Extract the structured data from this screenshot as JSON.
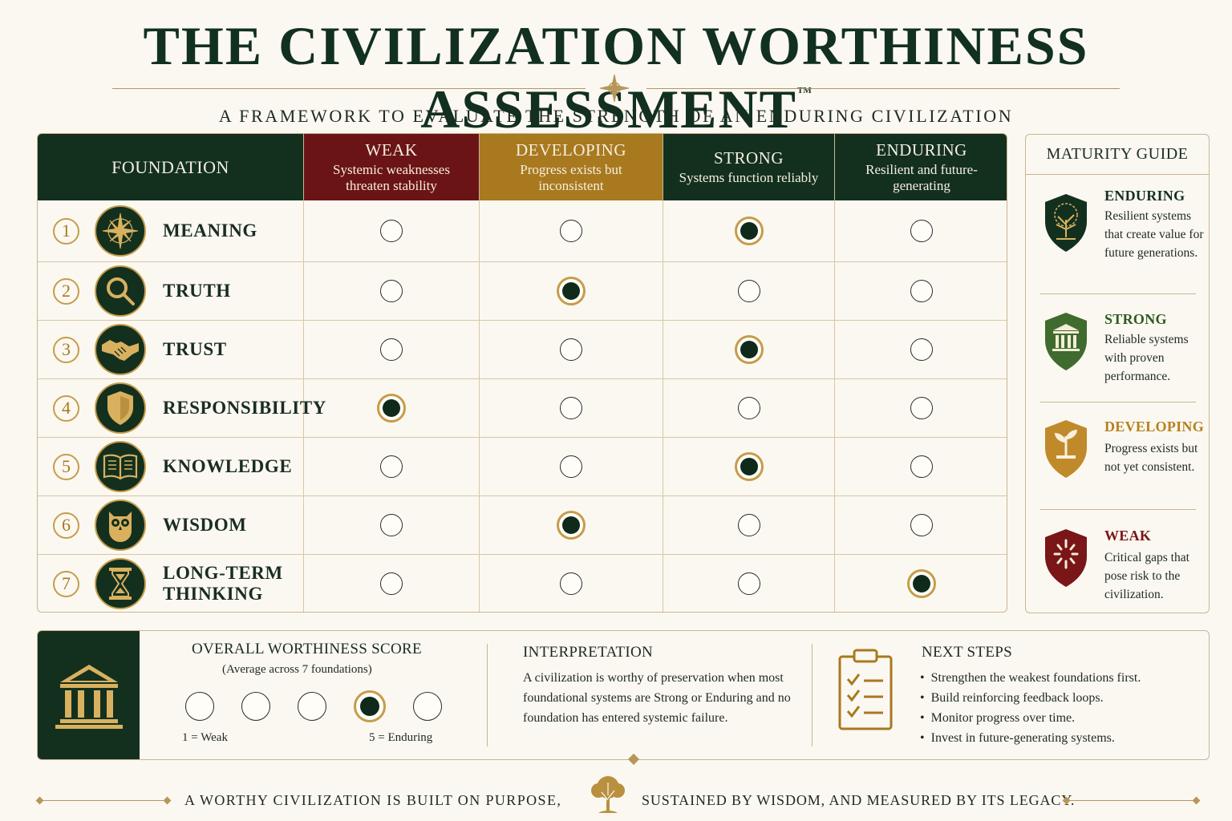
{
  "header": {
    "title": "THE CIVILIZATION WORTHINESS ASSESSMENT",
    "trademark": "TM",
    "subtitle": "A FRAMEWORK TO EVALUATE THE STRENGTH OF AN ENDURING CIVILIZATION"
  },
  "table": {
    "foundation_header": "FOUNDATION",
    "levels": [
      {
        "name": "WEAK",
        "desc": "Systemic weaknesses threaten stability",
        "color": "#6b1416"
      },
      {
        "name": "DEVELOPING",
        "desc": "Progress exists but inconsistent",
        "color": "#a8791f"
      },
      {
        "name": "STRONG",
        "desc": "Systems function reliably",
        "color": "#13301f"
      },
      {
        "name": "ENDURING",
        "desc": "Resilient and future-generating",
        "color": "#13301f"
      }
    ],
    "foundations": [
      {
        "num": "1",
        "name": "MEANING",
        "icon": "compass-star-icon",
        "rating": "STRONG"
      },
      {
        "num": "2",
        "name": "TRUTH",
        "icon": "magnifier-icon",
        "rating": "DEVELOPING"
      },
      {
        "num": "3",
        "name": "TRUST",
        "icon": "handshake-icon",
        "rating": "STRONG"
      },
      {
        "num": "4",
        "name": "RESPONSIBILITY",
        "icon": "shield-icon",
        "rating": "WEAK"
      },
      {
        "num": "5",
        "name": "KNOWLEDGE",
        "icon": "book-icon",
        "rating": "STRONG"
      },
      {
        "num": "6",
        "name": "WISDOM",
        "icon": "owl-icon",
        "rating": "DEVELOPING"
      },
      {
        "num": "7",
        "name_line1": "LONG-TERM",
        "name_line2": "THINKING",
        "icon": "hourglass-icon",
        "rating": "ENDURING"
      }
    ]
  },
  "guide": {
    "title": "MATURITY GUIDE",
    "items": [
      {
        "name": "ENDURING",
        "desc": "Resilient systems that create value for future generations.",
        "color": "#13301f",
        "name_color": "#13301f",
        "icon": "tree-shield-icon"
      },
      {
        "name": "STRONG",
        "desc": "Reliable systems with proven performance.",
        "color": "#3f6b2e",
        "name_color": "#2f5a22",
        "icon": "pillars-shield-icon"
      },
      {
        "name": "DEVELOPING",
        "desc": "Progress exists but not yet consistent.",
        "color": "#c08a2a",
        "name_color": "#b7801f",
        "icon": "sprout-shield-icon"
      },
      {
        "name": "WEAK",
        "desc": "Critical gaps that pose risk to the civilization.",
        "color": "#7a1518",
        "name_color": "#7a1518",
        "icon": "broken-shield-icon"
      }
    ]
  },
  "score": {
    "title": "OVERALL WORTHINESS SCORE",
    "subtitle": "(Average across 7 foundations)",
    "options": [
      1,
      2,
      3,
      4,
      5
    ],
    "selected": 4,
    "low_label": "1 = Weak",
    "high_label": "5 = Enduring"
  },
  "interpretation": {
    "title": "INTERPRETATION",
    "body": "A civilization is worthy of preservation when most foundational systems are Strong or Enduring and no foundation has entered systemic failure."
  },
  "next_steps": {
    "title": "NEXT STEPS",
    "items": [
      "Strengthen the weakest foundations first.",
      "Build reinforcing feedback loops.",
      "Monitor progress over time.",
      "Invest in future-generating systems."
    ]
  },
  "footer": {
    "left": "A WORTHY CIVILIZATION IS BUILT ON PURPOSE,",
    "right": "SUSTAINED BY WISDOM, AND MEASURED BY ITS LEGACY."
  },
  "colors": {
    "dark_green": "#13301f",
    "gold": "#c59d4a",
    "weak_red": "#6b1416",
    "cream": "#fbf8f1"
  }
}
